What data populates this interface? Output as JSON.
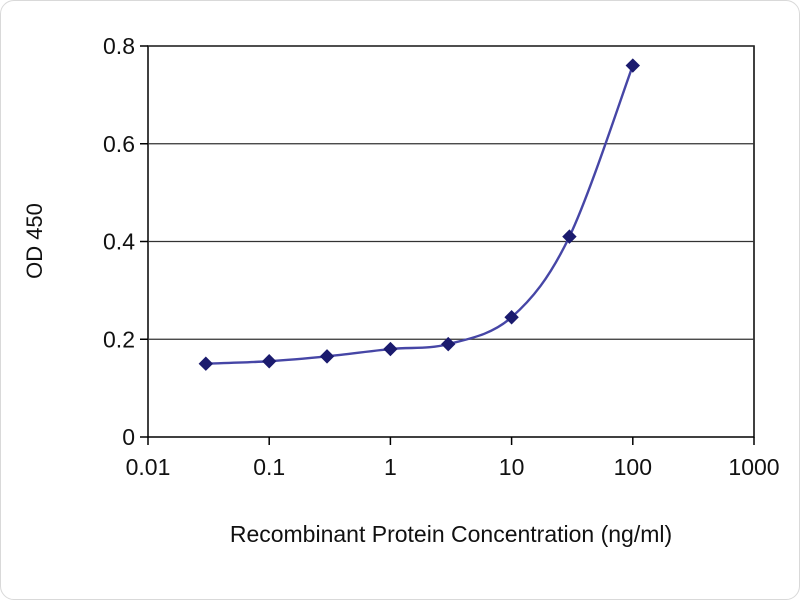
{
  "figure": {
    "background": "#ffffff",
    "border_color": "#d9d9d9"
  },
  "chart_data": {
    "type": "line",
    "title": "",
    "xlabel": "Recombinant Protein Concentration (ng/ml)",
    "ylabel": "OD 450",
    "xscale": "log",
    "xlim": [
      0.01,
      1000
    ],
    "ylim": [
      0,
      0.8
    ],
    "x_ticks": [
      0.01,
      0.1,
      1,
      10,
      100,
      1000
    ],
    "x_tick_labels": [
      "0.01",
      "0.1",
      "1",
      "10",
      "100",
      "1000"
    ],
    "y_ticks": [
      0,
      0.2,
      0.4,
      0.6,
      0.8
    ],
    "y_tick_labels": [
      "0",
      "0.2",
      "0.4",
      "0.6",
      "0.8"
    ],
    "grid": "horizontal",
    "legend": "none",
    "axis_color": "#000000",
    "grid_color": "#333333",
    "series": [
      {
        "name": "OD 450",
        "x": [
          0.03,
          0.1,
          0.3,
          1,
          3,
          10,
          30,
          100
        ],
        "y": [
          0.15,
          0.155,
          0.165,
          0.18,
          0.19,
          0.245,
          0.41,
          0.76
        ],
        "line_color": "#4646a6",
        "marker": "diamond",
        "marker_color": "#1b1b6e"
      }
    ]
  }
}
